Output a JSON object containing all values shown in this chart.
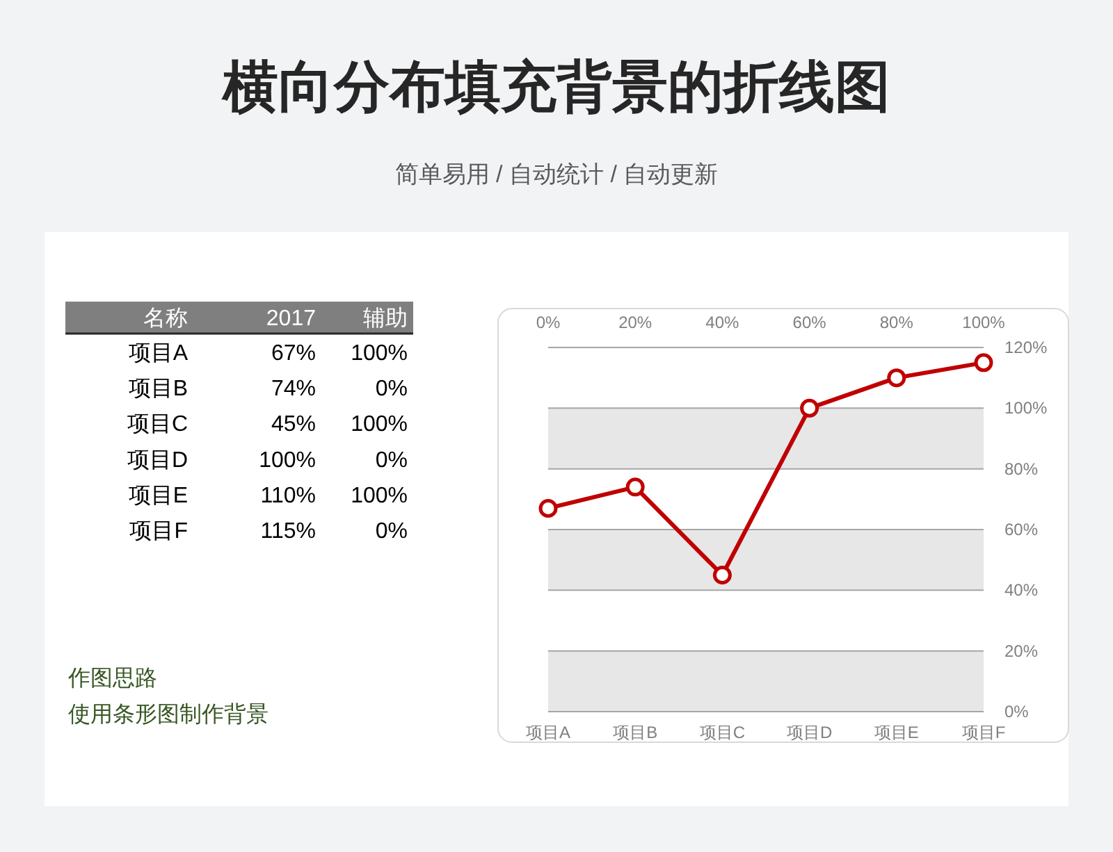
{
  "chart_data": [
    {
      "type": "other",
      "title": "横向分布填充背景的折线图",
      "subtitle": "简单易用 / 自动统计 / 自动更新",
      "annotations": [
        "名称",
        "2017",
        "辅助",
        "项目A",
        "67%",
        "100%",
        "项目B",
        "74%",
        "0%",
        "项目C",
        "45%",
        "100%",
        "项目D",
        "100%",
        "0%",
        "项目E",
        "110%",
        "100%",
        "项目F",
        "115%",
        "0%"
      ]
    },
    {
      "type": "line",
      "categories": [
        "项目A",
        "项目B",
        "项目C",
        "项目D",
        "项目E",
        "项目F"
      ],
      "series": [
        {
          "color": "#c00000",
          "values": [
            67,
            74,
            45,
            100,
            110,
            115
          ]
        }
      ],
      "ylim": [
        0,
        120
      ],
      "yticks": [
        {
          "value": 0,
          "label": "0%"
        },
        {
          "value": 20,
          "label": "20%"
        },
        {
          "value": 40,
          "label": "40%"
        },
        {
          "value": 60,
          "label": "60%"
        },
        {
          "value": 80,
          "label": "80%"
        },
        {
          "value": 100,
          "label": "100%"
        },
        {
          "value": 120,
          "label": "120%"
        }
      ],
      "x2lim": [
        0,
        100
      ],
      "x2ticks": [
        {
          "value": 0,
          "label": "0%"
        },
        {
          "value": 20,
          "label": "20%"
        },
        {
          "value": 40,
          "label": "40%"
        },
        {
          "value": 60,
          "label": "60%"
        },
        {
          "value": 80,
          "label": "80%"
        },
        {
          "value": 100,
          "label": "100%"
        }
      ],
      "bands": [
        {
          "axis": "y",
          "from": 0,
          "to": 20,
          "color": "#e7e7e7"
        },
        {
          "axis": "y",
          "from": 40,
          "to": 60,
          "color": "#e7e7e7"
        },
        {
          "axis": "y",
          "from": 80,
          "to": 100,
          "color": "#e7e7e7"
        }
      ],
      "grid": "y",
      "marker": "circle",
      "line_style": "solid"
    },
    {
      "type": "other",
      "annotations": [
        "作图思路",
        "使用条形图制作背景"
      ]
    }
  ]
}
